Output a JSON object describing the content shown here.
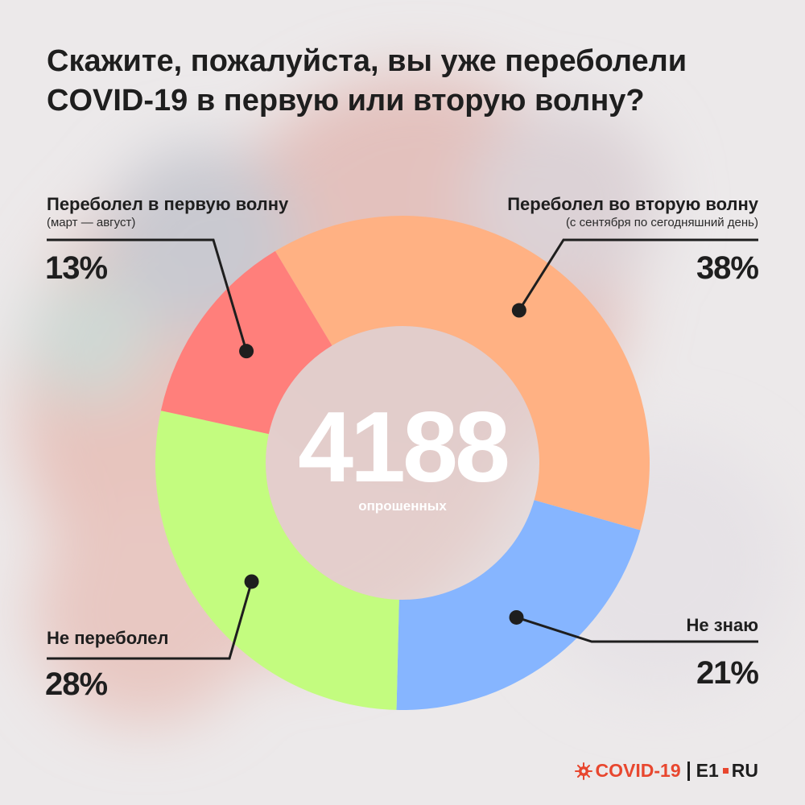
{
  "title_lines": [
    "Скажите, пожалуйста, вы уже переболели",
    "COVID-19 в первую или вторую волну?"
  ],
  "center": {
    "value": "4188",
    "label": "опрошенных"
  },
  "colors": {
    "first_wave": "#ff7f7b",
    "second_wave": "#ffb183",
    "dont_know": "#86b5ff",
    "not_sick": "#c3fc7f",
    "text": "#1e1e1e",
    "accent": "#e8472f"
  },
  "chart_data": {
    "type": "pie",
    "variant": "donut",
    "total": 4188,
    "slices": [
      {
        "name": "Переболел во вторую волну",
        "note": "(с сентября по сегодняшний день)",
        "value": 38,
        "label": "38%"
      },
      {
        "name": "Не знаю",
        "note": "",
        "value": 21,
        "label": "21%"
      },
      {
        "name": "Не переболел",
        "note": "",
        "value": 28,
        "label": "28%"
      },
      {
        "name": "Переболел в первую волну",
        "note": "(март — август)",
        "value": 13,
        "label": "13%"
      }
    ]
  },
  "logo": {
    "part1": "COVID-19",
    "part2": "E1",
    "part3": "RU",
    "icon": "virus-icon"
  }
}
